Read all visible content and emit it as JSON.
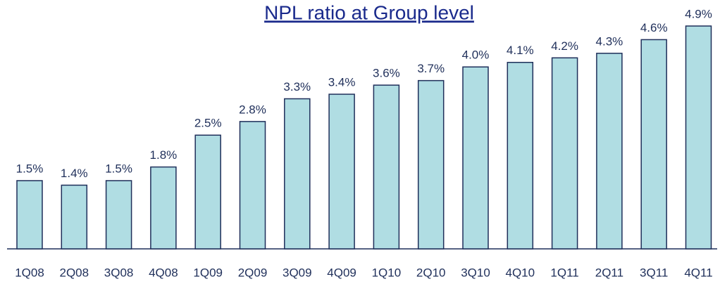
{
  "chart_data": {
    "type": "bar",
    "title": "NPL ratio at Group level",
    "categories": [
      "1Q08",
      "2Q08",
      "3Q08",
      "4Q08",
      "1Q09",
      "2Q09",
      "3Q09",
      "4Q09",
      "1Q10",
      "2Q10",
      "3Q10",
      "4Q10",
      "1Q11",
      "2Q11",
      "3Q11",
      "4Q11"
    ],
    "values": [
      1.5,
      1.4,
      1.5,
      1.8,
      2.5,
      2.8,
      3.3,
      3.4,
      3.6,
      3.7,
      4.0,
      4.1,
      4.2,
      4.3,
      4.6,
      4.9
    ],
    "value_labels": [
      "1.5%",
      "1.4%",
      "1.5%",
      "1.8%",
      "2.5%",
      "2.8%",
      "3.3%",
      "3.4%",
      "3.6%",
      "3.7%",
      "4.0%",
      "4.1%",
      "4.2%",
      "4.3%",
      "4.6%",
      "4.9%"
    ],
    "color": "#b0dde3"
  }
}
